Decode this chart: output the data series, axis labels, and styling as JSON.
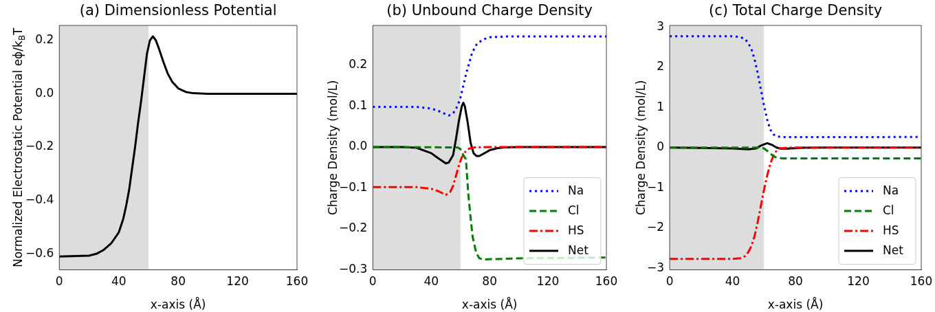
{
  "chart_data": [
    {
      "type": "line",
      "title": "(a) Dimensionless Potential",
      "xlabel": "x-axis (Å)",
      "ylabel": "Normalized Electrostatic Potential eϕ/k$_{B}$T",
      "x": [
        0,
        20,
        25,
        30,
        35,
        40,
        43,
        45,
        47,
        49,
        51,
        53,
        55,
        57,
        59,
        61,
        63,
        65,
        67,
        70,
        73,
        76,
        80,
        85,
        90,
        100,
        160
      ],
      "values": [
        -0.61,
        -0.607,
        -0.6,
        -0.585,
        -0.56,
        -0.52,
        -0.47,
        -0.42,
        -0.36,
        -0.28,
        -0.2,
        -0.11,
        -0.03,
        0.06,
        0.15,
        0.2,
        0.215,
        0.2,
        0.17,
        0.12,
        0.075,
        0.045,
        0.02,
        0.007,
        0.002,
        0,
        0
      ],
      "color": "#000000",
      "line_style": "solid",
      "xlim": [
        0,
        160
      ],
      "xticks": [
        0,
        40,
        80,
        120,
        160
      ],
      "ylim": [
        -0.66,
        0.256
      ],
      "yticks": [
        {
          "value": -0.6,
          "label": "−0.6"
        },
        {
          "value": -0.4,
          "label": "−0.4"
        },
        {
          "value": -0.2,
          "label": "−0.2"
        },
        {
          "value": 0,
          "label": "0.0"
        },
        {
          "value": 0.2,
          "label": "0.2"
        }
      ],
      "bands": [
        {
          "axis": "x",
          "from": 0,
          "to": 60,
          "color": "#dddddd"
        }
      ],
      "grid": false,
      "legend": false
    },
    {
      "type": "line",
      "title": "(b) Unbound Charge Density",
      "xlabel": "x-axis (Å)",
      "ylabel": "Charge Density (mol/L)",
      "legend": "bottom right",
      "grid": false,
      "series": [
        {
          "name": "Na",
          "color": "#0000ff",
          "line_style": "dotted",
          "x": [
            0,
            30,
            40,
            45,
            50,
            52,
            55,
            58,
            60,
            62,
            64,
            66,
            68,
            71,
            75,
            80,
            90,
            160
          ],
          "values": [
            0.098,
            0.098,
            0.094,
            0.088,
            0.08,
            0.077,
            0.082,
            0.1,
            0.12,
            0.15,
            0.18,
            0.205,
            0.23,
            0.25,
            0.262,
            0.268,
            0.27,
            0.27
          ]
        },
        {
          "name": "Cl",
          "color": "#008000",
          "line_style": "dashed",
          "x": [
            0,
            58,
            60,
            62,
            63.8,
            65.3,
            66.9,
            68.4,
            70.8,
            73,
            76,
            81,
            100,
            160
          ],
          "values": [
            0,
            -0.001,
            -0.005,
            -0.02,
            -0.03,
            -0.11,
            -0.17,
            -0.22,
            -0.258,
            -0.272,
            -0.275,
            -0.274,
            -0.272,
            -0.27
          ]
        },
        {
          "name": "HS",
          "color": "#ff0000",
          "line_style": "dashdot",
          "x": [
            0,
            30,
            40,
            45,
            50,
            53,
            55,
            57,
            59,
            61,
            63,
            66,
            70,
            80,
            160
          ],
          "values": [
            -0.098,
            -0.098,
            -0.102,
            -0.108,
            -0.117,
            -0.11,
            -0.095,
            -0.07,
            -0.045,
            -0.025,
            -0.013,
            -0.004,
            -0.001,
            0,
            0
          ]
        },
        {
          "name": "Net",
          "color": "#000000",
          "line_style": "solid",
          "x": [
            0,
            20,
            30,
            40,
            45,
            50,
            52,
            55,
            57,
            59,
            61,
            62,
            63,
            65,
            67,
            69,
            71,
            73,
            76,
            80,
            85,
            90,
            100,
            160
          ],
          "values": [
            0,
            0,
            -0.002,
            -0.015,
            -0.028,
            -0.04,
            -0.038,
            -0.02,
            0.02,
            0.065,
            0.1,
            0.108,
            0.1,
            0.06,
            0.01,
            -0.015,
            -0.022,
            -0.022,
            -0.016,
            -0.008,
            -0.003,
            -0.001,
            0,
            0
          ]
        }
      ],
      "xlim": [
        0,
        160
      ],
      "xticks": [
        0,
        40,
        80,
        120,
        160
      ],
      "ylim": [
        -0.3,
        0.297
      ],
      "yticks": [
        {
          "value": -0.3,
          "label": "−0.3"
        },
        {
          "value": -0.2,
          "label": "−0.2"
        },
        {
          "value": -0.1,
          "label": "−0.1"
        },
        {
          "value": 0,
          "label": "0.0"
        },
        {
          "value": 0.1,
          "label": "0.1"
        },
        {
          "value": 0.2,
          "label": "0.2"
        }
      ],
      "bands": [
        {
          "axis": "x",
          "from": 0,
          "to": 60,
          "color": "#dddddd"
        }
      ]
    },
    {
      "type": "line",
      "title": "(c) Total Charge Density",
      "xlabel": "x-axis (Å)",
      "ylabel": "Charge Density (mol/L)",
      "legend": "bottom right",
      "grid": false,
      "series": [
        {
          "name": "Na",
          "color": "#0000ff",
          "line_style": "dotted",
          "x": [
            0,
            40,
            45,
            48,
            50,
            52,
            54,
            56,
            58,
            60,
            62,
            64,
            66,
            68,
            72,
            80,
            160
          ],
          "values": [
            2.77,
            2.77,
            2.75,
            2.7,
            2.6,
            2.45,
            2.2,
            1.85,
            1.45,
            1.05,
            0.7,
            0.45,
            0.33,
            0.28,
            0.26,
            0.26,
            0.265
          ]
        },
        {
          "name": "Cl",
          "color": "#008000",
          "line_style": "dashed",
          "x": [
            0,
            58,
            60,
            62,
            64,
            66,
            68,
            72,
            80,
            160
          ],
          "values": [
            0,
            0,
            -0.02,
            -0.08,
            -0.15,
            -0.21,
            -0.25,
            -0.27,
            -0.27,
            -0.27
          ]
        },
        {
          "name": "HS",
          "color": "#ff0000",
          "line_style": "dashdot",
          "x": [
            0,
            40,
            45,
            48,
            50,
            52,
            54,
            56,
            58,
            60,
            62,
            64,
            66,
            68,
            70,
            75,
            160
          ],
          "values": [
            -2.77,
            -2.77,
            -2.75,
            -2.7,
            -2.6,
            -2.45,
            -2.2,
            -1.85,
            -1.45,
            -1.05,
            -0.7,
            -0.4,
            -0.2,
            -0.08,
            -0.02,
            0,
            0
          ]
        },
        {
          "name": "Net",
          "color": "#000000",
          "line_style": "solid",
          "x": [
            0,
            40,
            50,
            55,
            58,
            62,
            65,
            68,
            71,
            75,
            85,
            100,
            160
          ],
          "values": [
            0,
            -0.02,
            -0.04,
            -0.02,
            0.05,
            0.11,
            0.07,
            0,
            -0.03,
            -0.025,
            -0.005,
            0,
            0
          ]
        }
      ],
      "xlim": [
        0,
        160
      ],
      "xticks": [
        0,
        40,
        80,
        120,
        160
      ],
      "ylim": [
        -3.04,
        3.04
      ],
      "yticks": [
        {
          "value": -3,
          "label": "−3"
        },
        {
          "value": -2,
          "label": "−2"
        },
        {
          "value": -1,
          "label": "−1"
        },
        0,
        1,
        2,
        3
      ],
      "bands": [
        {
          "axis": "x",
          "from": 0,
          "to": 60,
          "color": "#dddddd"
        }
      ]
    }
  ]
}
